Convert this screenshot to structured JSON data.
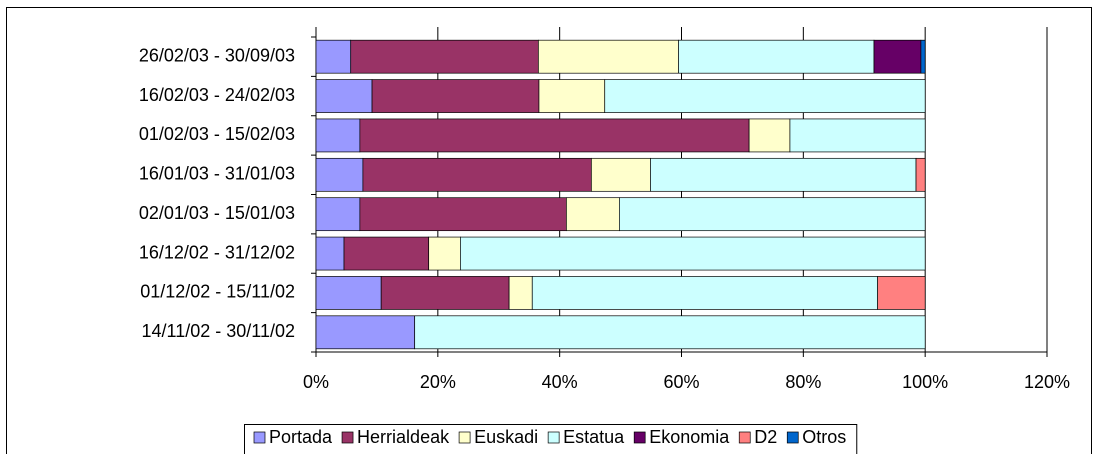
{
  "chart_data": {
    "type": "stacked-bar-horizontal",
    "categories": [
      "26/02/03 - 30/09/03",
      "16/02/03 - 24/02/03",
      "01/02/03 - 15/02/03",
      "16/01/03 - 31/01/03",
      "02/01/03 - 15/01/03",
      "16/12/02 - 31/12/02",
      "01/12/02 - 15/11/02",
      "14/11/02 - 30/11/02"
    ],
    "series": [
      {
        "name": "Portada",
        "color": "#9999ff",
        "values": [
          5.7,
          9.2,
          7.2,
          7.7,
          7.2,
          4.6,
          10.7,
          16.2
        ]
      },
      {
        "name": "Herrialdeak",
        "color": "#993366",
        "values": [
          30.8,
          27.4,
          63.9,
          37.5,
          33.9,
          13.9,
          21.0,
          0
        ]
      },
      {
        "name": "Euskadi",
        "color": "#ffffcc",
        "values": [
          23.0,
          10.8,
          6.7,
          9.7,
          8.7,
          5.2,
          3.8,
          0
        ]
      },
      {
        "name": "Estatua",
        "color": "#ccffff",
        "values": [
          32.1,
          52.6,
          22.2,
          43.6,
          50.2,
          76.3,
          56.7,
          83.8
        ]
      },
      {
        "name": "Ekonomia",
        "color": "#660066",
        "values": [
          7.7,
          0,
          0,
          0,
          0,
          0,
          0,
          0
        ]
      },
      {
        "name": "D2",
        "color": "#ff8080",
        "values": [
          0,
          0,
          0,
          1.5,
          0,
          0,
          7.8,
          0
        ]
      },
      {
        "name": "Otros",
        "color": "#0066cc",
        "values": [
          0.7,
          0,
          0,
          0,
          0,
          0,
          0,
          0
        ]
      }
    ],
    "xlim": [
      0,
      120
    ],
    "xticks": [
      {
        "value": 0,
        "label": "0%"
      },
      {
        "value": 20,
        "label": "20%"
      },
      {
        "value": 40,
        "label": "40%"
      },
      {
        "value": 60,
        "label": "60%"
      },
      {
        "value": 80,
        "label": "80%"
      },
      {
        "value": 100,
        "label": "100%"
      },
      {
        "value": 120,
        "label": "120%"
      }
    ],
    "grid": true,
    "legend": "bottom"
  }
}
